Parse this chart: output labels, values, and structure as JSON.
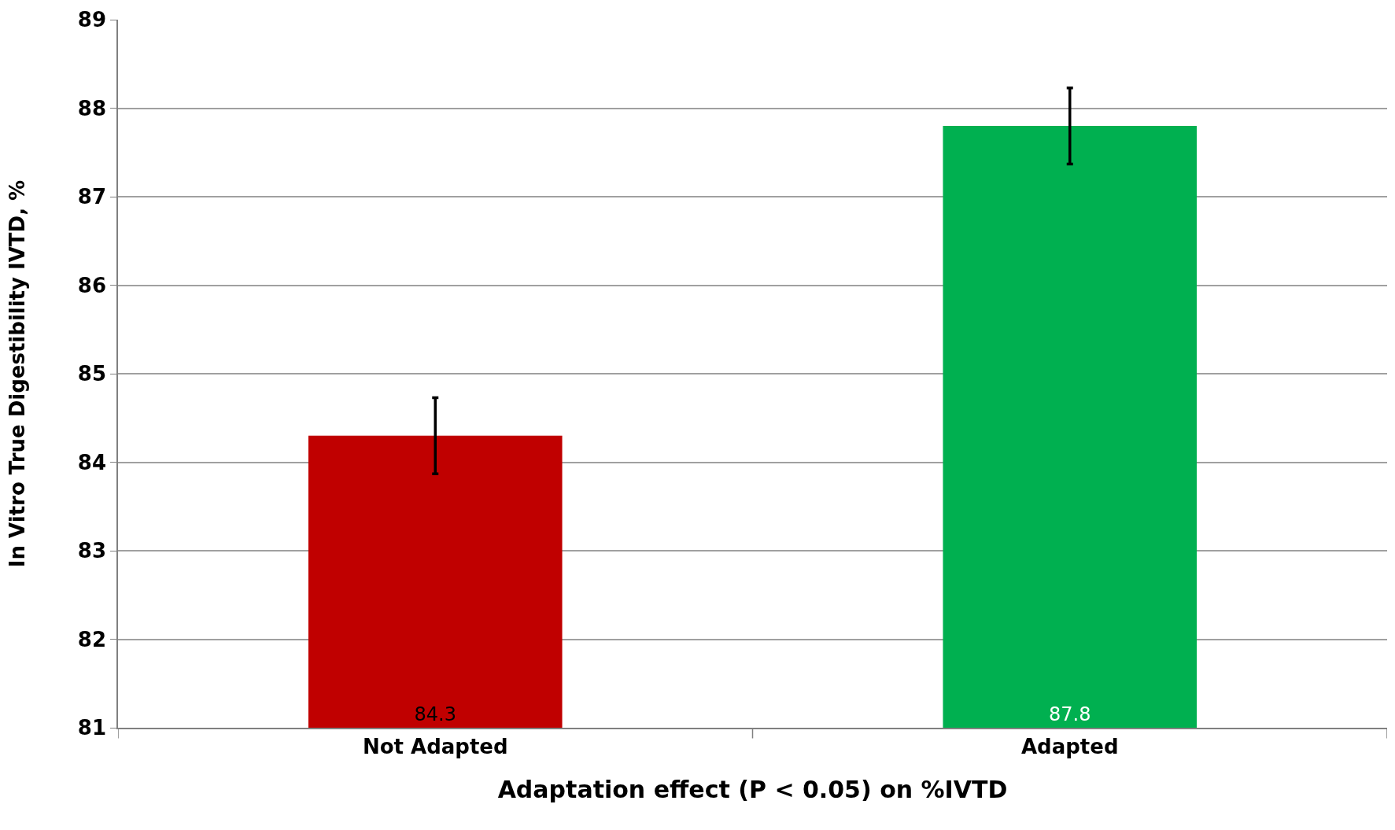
{
  "chart_data": {
    "type": "bar",
    "xlabel": "Adaptation effect (P < 0.05) on %IVTD",
    "ylabel": "In Vitro True Digestibility IVTD, %",
    "categories": [
      "Not Adapted",
      "Adapted"
    ],
    "values": [
      84.3,
      87.8
    ],
    "colors": [
      "#c00000",
      "#00b050"
    ],
    "errors": [
      0.43,
      0.43
    ],
    "data_labels": true,
    "ylim": [
      81,
      89
    ],
    "yticks": [
      81,
      82,
      83,
      84,
      85,
      86,
      87,
      88,
      89
    ],
    "grid": "y",
    "legend": false
  }
}
